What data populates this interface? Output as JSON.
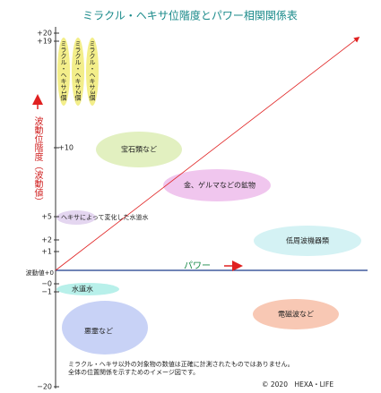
{
  "title": "ミラクル・ヘキサ位階度とパワー相関関係表",
  "y_axis": {
    "label": "波動位階度（波動値）",
    "ticks": [
      "+20",
      "+19",
      "+10",
      "+5",
      "+2",
      "+1",
      "波動値+0",
      "−0",
      "−1",
      "−20"
    ]
  },
  "x_axis": {
    "label": "パワー"
  },
  "columns": [
    "ミラクル・ヘキサ1個",
    "ミラクル・ヘキサ2個",
    "ミラクル・ヘキサ3個"
  ],
  "regions": [
    "宝石類など",
    "金、ゲルマなどの鉱物",
    "ヘキサによって変化した水道水",
    "低周波機器類",
    "水道水",
    "電磁波など",
    "悪霊など"
  ],
  "notes": [
    "ミラクル・ヘキサ以外の対象物の数値は正確に計測されたものではありません。",
    "全体の位置関係を示すためのイメージ図です。"
  ],
  "copyright": "© 2020　HEXA・LIFE"
}
